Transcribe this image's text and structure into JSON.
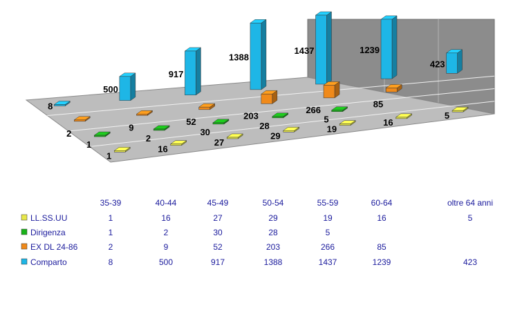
{
  "chart_data": {
    "type": "bar",
    "categories": [
      "35-39",
      "40-44",
      "45-49",
      "50-54",
      "55-59",
      "60-64",
      "oltre 64 anni"
    ],
    "series": [
      {
        "name": "LL.SS.UU",
        "color": "#e8e84a",
        "values": [
          1,
          16,
          27,
          29,
          19,
          16,
          5
        ]
      },
      {
        "name": "Dirigenza",
        "color": "#19b319",
        "values": [
          1,
          2,
          30,
          28,
          5,
          null,
          null
        ]
      },
      {
        "name": "EX DL 24-86",
        "color": "#f08a1a",
        "values": [
          2,
          9,
          52,
          203,
          266,
          85,
          null
        ]
      },
      {
        "name": "Comparto",
        "color": "#1eb6e6",
        "values": [
          8,
          500,
          917,
          1388,
          1437,
          1239,
          423
        ]
      }
    ],
    "title": "",
    "xlabel": "",
    "ylabel": "",
    "legend": "data-table below chart",
    "grid": false
  }
}
